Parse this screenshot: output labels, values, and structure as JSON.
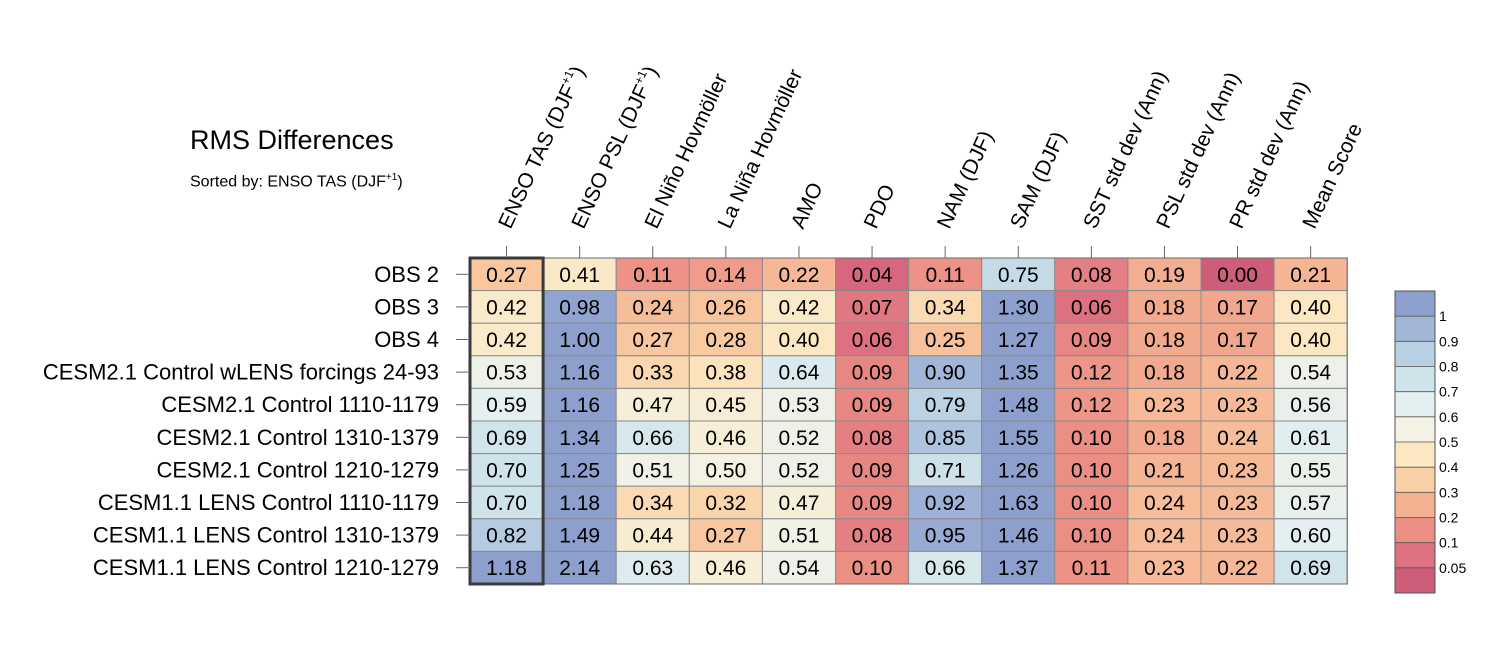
{
  "chart_data": {
    "type": "heatmap",
    "title": "RMS Differences",
    "subtitle_prefix": "Sorted by: ENSO TAS (DJF",
    "subtitle_sup": "+1",
    "subtitle_suffix": ")",
    "columns": [
      {
        "label": "ENSO TAS (DJF",
        "sup": "+1",
        "suffix": ")"
      },
      {
        "label": "ENSO PSL (DJF",
        "sup": "+1",
        "suffix": ")"
      },
      {
        "label": "El Niño Hovmöller",
        "sup": "",
        "suffix": ""
      },
      {
        "label": "La Niña Hovmöller",
        "sup": "",
        "suffix": ""
      },
      {
        "label": "AMO",
        "sup": "",
        "suffix": ""
      },
      {
        "label": "PDO",
        "sup": "",
        "suffix": ""
      },
      {
        "label": "NAM (DJF)",
        "sup": "",
        "suffix": ""
      },
      {
        "label": "SAM (DJF)",
        "sup": "",
        "suffix": ""
      },
      {
        "label": "SST std dev (Ann)",
        "sup": "",
        "suffix": ""
      },
      {
        "label": "PSL std dev (Ann)",
        "sup": "",
        "suffix": ""
      },
      {
        "label": "PR std dev (Ann)",
        "sup": "",
        "suffix": ""
      },
      {
        "label": "Mean Score",
        "sup": "",
        "suffix": ""
      }
    ],
    "rows": [
      "OBS 2",
      "OBS 3",
      "OBS 4",
      "CESM2.1 Control wLENS forcings 24-93",
      "CESM2.1 Control 1110-1179",
      "CESM2.1 Control 1310-1379",
      "CESM2.1 Control 1210-1279",
      "CESM1.1 LENS Control 1110-1179",
      "CESM1.1 LENS Control 1310-1379",
      "CESM1.1 LENS Control 1210-1279"
    ],
    "values": [
      [
        "0.27",
        "0.41",
        "0.11",
        "0.14",
        "0.22",
        "0.04",
        "0.11",
        "0.75",
        "0.08",
        "0.19",
        "0.00",
        "0.21"
      ],
      [
        "0.42",
        "0.98",
        "0.24",
        "0.26",
        "0.42",
        "0.07",
        "0.34",
        "1.30",
        "0.06",
        "0.18",
        "0.17",
        "0.40"
      ],
      [
        "0.42",
        "1.00",
        "0.27",
        "0.28",
        "0.40",
        "0.06",
        "0.25",
        "1.27",
        "0.09",
        "0.18",
        "0.17",
        "0.40"
      ],
      [
        "0.53",
        "1.16",
        "0.33",
        "0.38",
        "0.64",
        "0.09",
        "0.90",
        "1.35",
        "0.12",
        "0.18",
        "0.22",
        "0.54"
      ],
      [
        "0.59",
        "1.16",
        "0.47",
        "0.45",
        "0.53",
        "0.09",
        "0.79",
        "1.48",
        "0.12",
        "0.23",
        "0.23",
        "0.56"
      ],
      [
        "0.69",
        "1.34",
        "0.66",
        "0.46",
        "0.52",
        "0.08",
        "0.85",
        "1.55",
        "0.10",
        "0.18",
        "0.24",
        "0.61"
      ],
      [
        "0.70",
        "1.25",
        "0.51",
        "0.50",
        "0.52",
        "0.09",
        "0.71",
        "1.26",
        "0.10",
        "0.21",
        "0.23",
        "0.55"
      ],
      [
        "0.70",
        "1.18",
        "0.34",
        "0.32",
        "0.47",
        "0.09",
        "0.92",
        "1.63",
        "0.10",
        "0.24",
        "0.23",
        "0.57"
      ],
      [
        "0.82",
        "1.49",
        "0.44",
        "0.27",
        "0.51",
        "0.08",
        "0.95",
        "1.46",
        "0.10",
        "0.24",
        "0.23",
        "0.60"
      ],
      [
        "1.18",
        "2.14",
        "0.63",
        "0.46",
        "0.54",
        "0.10",
        "0.66",
        "1.37",
        "0.11",
        "0.23",
        "0.22",
        "0.69"
      ]
    ],
    "sorted_column_index": 0,
    "colorbar": {
      "labels": [
        "1",
        "0.9",
        "0.8",
        "0.7",
        "0.6",
        "0.5",
        "0.4",
        "0.3",
        "0.2",
        "0.1",
        "0.05"
      ],
      "colors_top_to_bottom": [
        "#8d9fcd",
        "#a2b6d8",
        "#b9d0e3",
        "#cfe3ea",
        "#e3eff0",
        "#f3f2e4",
        "#fbe8c3",
        "#f9d0a6",
        "#f4b192",
        "#eb8f85",
        "#de7182",
        "#cd5d79"
      ]
    },
    "color_stops": [
      {
        "v": 0.0,
        "c": "#cd5d79"
      },
      {
        "v": 0.05,
        "c": "#d9697f"
      },
      {
        "v": 0.1,
        "c": "#eb8f85"
      },
      {
        "v": 0.2,
        "c": "#f4b192"
      },
      {
        "v": 0.3,
        "c": "#f9d0a6"
      },
      {
        "v": 0.4,
        "c": "#fbe8c3"
      },
      {
        "v": 0.5,
        "c": "#f3f2e4"
      },
      {
        "v": 0.6,
        "c": "#e3eff0"
      },
      {
        "v": 0.7,
        "c": "#cfe3ea"
      },
      {
        "v": 0.8,
        "c": "#b9d0e3"
      },
      {
        "v": 0.9,
        "c": "#a2b6d8"
      },
      {
        "v": 1.0,
        "c": "#8d9fcd"
      }
    ]
  }
}
